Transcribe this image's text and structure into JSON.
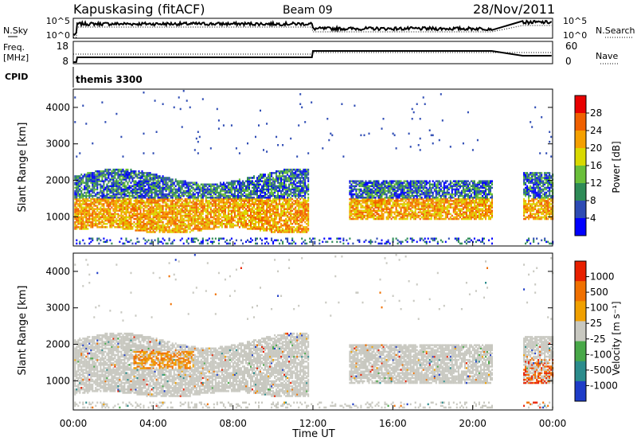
{
  "header": {
    "radar": "Kapuskasing (fitACF)",
    "beam": "Beam 09",
    "date": "28/Nov/2011"
  },
  "params": {
    "nsky_label": "N.Sky",
    "nsearch_label": "N.Search",
    "freq_label_1": "Freq.",
    "freq_label_2": "[MHz]",
    "nave_label": "Nave",
    "cpid_label": "CPID",
    "cpid_value": "themis 3300",
    "noise_ticks": [
      "10^5",
      "10^0"
    ],
    "noise_ticks_right": [
      "10^5",
      "10^0"
    ],
    "freq_ticks": [
      "18",
      "8"
    ],
    "nave_ticks": [
      "60",
      "0"
    ]
  },
  "colors": {
    "power": [
      "#0000ff",
      "#2d4bb4",
      "#2e8b57",
      "#6abf3a",
      "#d9d900",
      "#f5a000",
      "#f06000",
      "#e80000"
    ],
    "velocity": [
      "#1e3cc8",
      "#2b8c8c",
      "#48a848",
      "#c8c8c0",
      "#f0a000",
      "#f07000",
      "#e82000"
    ]
  },
  "chart_data": [
    {
      "type": "heatmap",
      "name": "power-panel",
      "ylabel": "Slant Range [km]",
      "yticks": [
        1000,
        2000,
        3000,
        4000
      ],
      "ylim": [
        200,
        4500
      ],
      "xlim": [
        0,
        24
      ],
      "colorbar_label": "Power [dB]",
      "colorbar_ticks": [
        "4",
        "8",
        "12",
        "16",
        "20",
        "24",
        "28"
      ]
    },
    {
      "type": "heatmap",
      "name": "velocity-panel",
      "ylabel": "Slant Range [km]",
      "yticks": [
        1000,
        2000,
        3000,
        4000
      ],
      "ylim": [
        200,
        4500
      ],
      "xlim": [
        0,
        24
      ],
      "xlabel": "Time UT",
      "xticks": [
        "00:00",
        "04:00",
        "08:00",
        "12:00",
        "16:00",
        "20:00",
        "00:00"
      ],
      "colorbar_label": "Velocity [m s⁻¹]",
      "colorbar_ticks": [
        "1000",
        "500",
        "100",
        "25",
        "-25",
        "-100",
        "-500",
        "-1000"
      ]
    }
  ]
}
